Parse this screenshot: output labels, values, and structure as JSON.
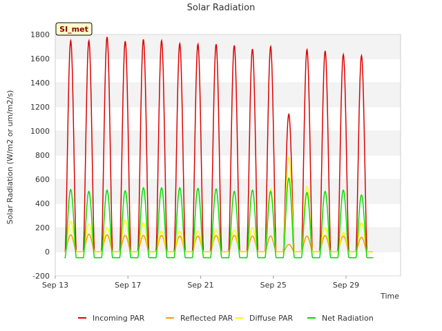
{
  "chart_data": {
    "type": "line",
    "title": "Solar Radiation",
    "xlabel": "Time",
    "ylabel": "Solar Radiation (W/m2 or um/m2/s)",
    "ylim": [
      -200,
      1800
    ],
    "xlim": [
      0,
      19
    ],
    "yticks": [
      -200,
      0,
      200,
      400,
      600,
      800,
      1000,
      1200,
      1400,
      1600,
      1800
    ],
    "xticks": [
      {
        "value": 0,
        "label": "Sep 13"
      },
      {
        "value": 4,
        "label": "Sep 17"
      },
      {
        "value": 8,
        "label": "Sep 21"
      },
      {
        "value": 12,
        "label": "Sep 25"
      },
      {
        "value": 16,
        "label": "Sep 29"
      }
    ],
    "site_label": "SI_met",
    "legend_position": "bottom",
    "days_offset": [
      0,
      1,
      2,
      3,
      4,
      5,
      6,
      7,
      8,
      9,
      10,
      11,
      12,
      13,
      14,
      15,
      16
    ],
    "series": [
      {
        "name": "Incoming PAR",
        "color": "#dd0000",
        "peaks": [
          1750,
          1750,
          1780,
          1745,
          1760,
          1750,
          1725,
          1720,
          1720,
          1710,
          1680,
          1700,
          1140,
          1675,
          1665,
          1635,
          1625
        ],
        "night": 0
      },
      {
        "name": "Reflected PAR",
        "color": "#ff9900",
        "peaks": [
          140,
          145,
          140,
          135,
          135,
          135,
          130,
          130,
          135,
          135,
          130,
          130,
          60,
          130,
          135,
          130,
          120
        ],
        "night": 0
      },
      {
        "name": "Diffuse PAR",
        "color": "#ffff00",
        "peaks": [
          250,
          230,
          200,
          260,
          240,
          170,
          170,
          170,
          180,
          180,
          200,
          520,
          780,
          540,
          200,
          160,
          240
        ],
        "night": 0
      },
      {
        "name": "Net Radiation",
        "color": "#00dd00",
        "peaks": [
          515,
          500,
          510,
          505,
          530,
          530,
          530,
          525,
          520,
          500,
          510,
          500,
          610,
          490,
          500,
          510,
          470
        ],
        "night": -50
      }
    ]
  }
}
